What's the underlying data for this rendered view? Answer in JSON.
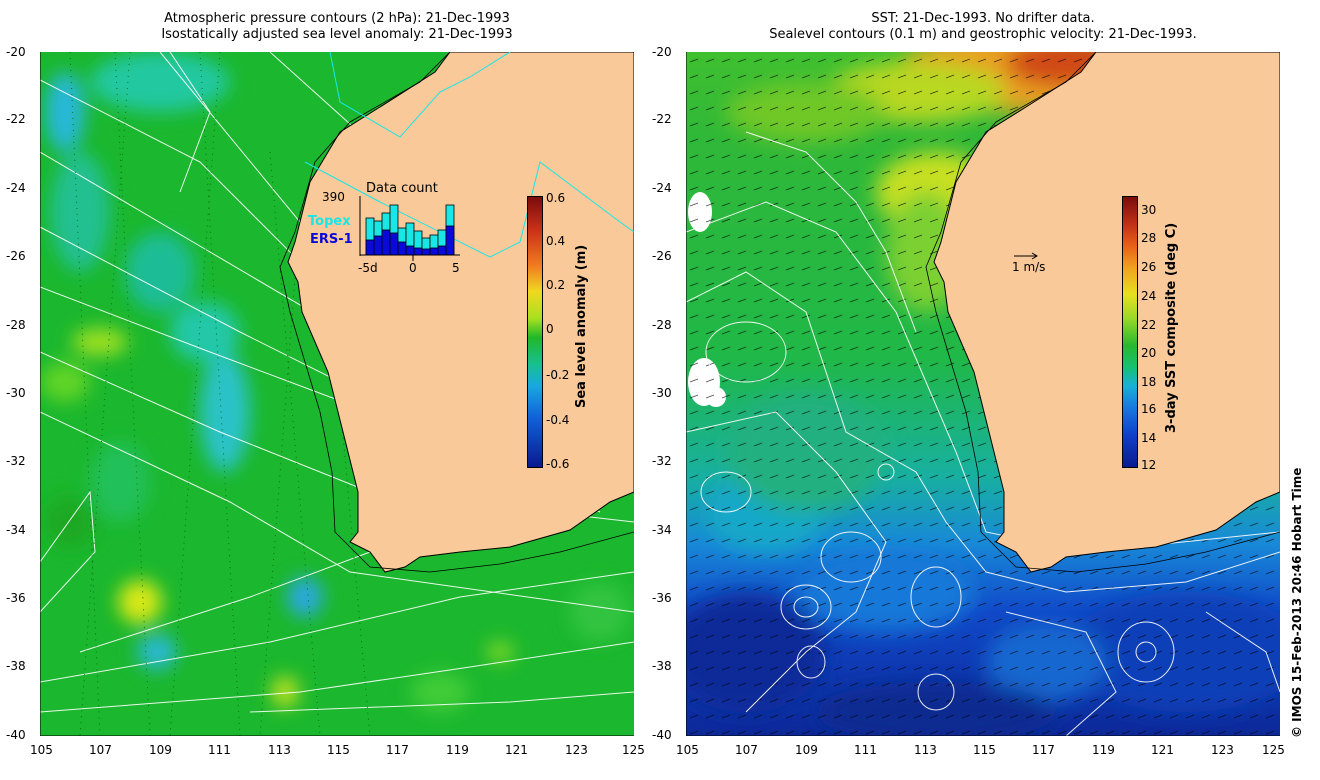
{
  "left_panel": {
    "title_line1": "Atmospheric pressure contours (2 hPa): 21-Dec-1993",
    "title_line2": "Isostatically adjusted sea level anomaly: 21-Dec-1993",
    "colorbar_label": "Sea level anomaly (m)",
    "colorbar_ticks": [
      "0.6",
      "0.4",
      "0.2",
      "0",
      "-0.2",
      "-0.4",
      "-0.6"
    ],
    "inset": {
      "title": "Data count",
      "max_count": "390",
      "legend_topex": "Topex",
      "legend_ers1": "ERS-1",
      "x_ticks": [
        "-5d",
        "0",
        "5"
      ]
    }
  },
  "right_panel": {
    "title_line1": "SST: 21-Dec-1993. No drifter data.",
    "title_line2": "Sealevel contours (0.1 m) and geostrophic velocity: 21-Dec-1993.",
    "colorbar_label": "3-day SST composite (deg C)",
    "colorbar_ticks": [
      "30",
      "28",
      "26",
      "24",
      "22",
      "20",
      "18",
      "16",
      "14",
      "12"
    ],
    "velocity_scale": "1 m/s"
  },
  "axes": {
    "lat_ticks": [
      "-20",
      "-22",
      "-24",
      "-26",
      "-28",
      "-30",
      "-32",
      "-34",
      "-36",
      "-38",
      "-40"
    ],
    "lon_ticks": [
      "105",
      "107",
      "109",
      "111",
      "113",
      "115",
      "117",
      "119",
      "121",
      "123",
      "125"
    ]
  },
  "colors": {
    "land": "#f9c99a",
    "ocean_green": "#19b82c",
    "topex": "#19e6e6",
    "ers1": "#0a0ad8"
  },
  "credit": "© IMOS 15-Feb-2013 20:46 Hobart Time"
}
